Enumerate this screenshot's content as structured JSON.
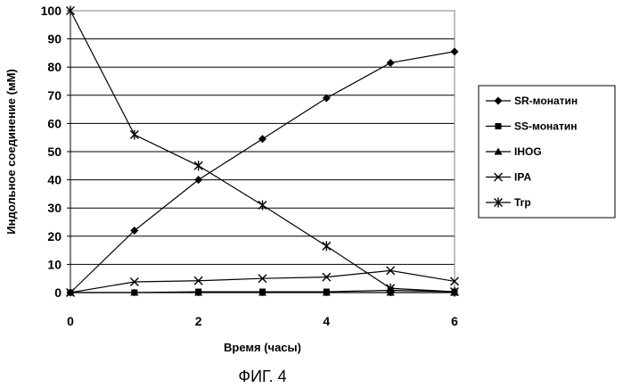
{
  "caption": "ФИГ. 4",
  "chart_data": {
    "type": "line",
    "title": "",
    "xlabel": "Время (часы)",
    "ylabel": "Индольное соединение (мМ)",
    "xlim": [
      0,
      6
    ],
    "ylim": [
      0,
      100
    ],
    "x_ticks": [
      0,
      2,
      4,
      6
    ],
    "y_ticks": [
      0,
      10,
      20,
      30,
      40,
      50,
      60,
      70,
      80,
      90,
      100
    ],
    "grid": "horizontal",
    "legend_position": "right",
    "x": [
      0,
      1,
      2,
      3,
      4,
      5,
      6
    ],
    "series": [
      {
        "name": "SR-монатин",
        "marker": "diamond",
        "values": [
          0,
          22,
          40,
          54.5,
          69,
          81.5,
          85.5
        ]
      },
      {
        "name": "SS-монатин",
        "marker": "square",
        "values": [
          0,
          0,
          0.3,
          0.3,
          0.3,
          0.8,
          0.3
        ]
      },
      {
        "name": "IHOG",
        "marker": "triangle",
        "values": [
          0,
          0,
          0,
          0,
          0,
          0,
          0
        ]
      },
      {
        "name": "IPA",
        "marker": "x",
        "values": [
          0,
          3.8,
          4.2,
          5,
          5.5,
          7.8,
          4
        ]
      },
      {
        "name": "Trp",
        "marker": "star",
        "values": [
          100,
          56,
          45,
          31,
          16.5,
          1.5,
          0.3
        ]
      }
    ]
  }
}
